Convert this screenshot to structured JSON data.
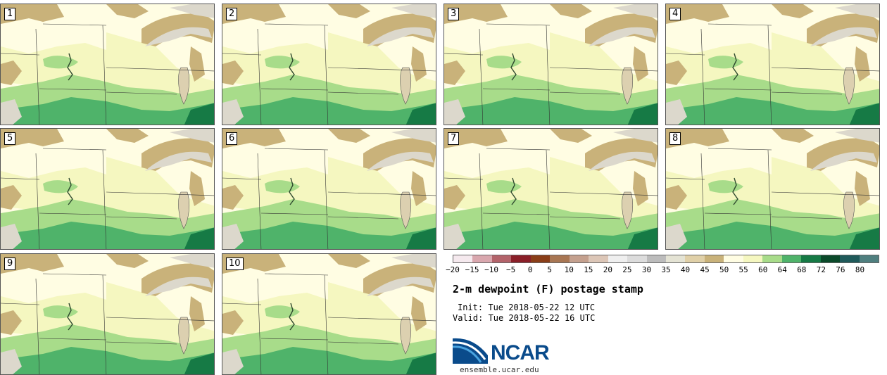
{
  "title": "2-m dewpoint (F) postage stamp",
  "init": "Init: Tue 2018-05-22 12 UTC",
  "valid": "Valid: Tue 2018-05-22 16 UTC",
  "logo_text": "NCAR",
  "site": "ensemble.ucar.edu",
  "panels": [
    {
      "label": "1"
    },
    {
      "label": "2"
    },
    {
      "label": "3"
    },
    {
      "label": "4"
    },
    {
      "label": "5"
    },
    {
      "label": "6"
    },
    {
      "label": "7"
    },
    {
      "label": "8"
    },
    {
      "label": "9"
    },
    {
      "label": "10"
    }
  ],
  "colorbar": {
    "ticks": [
      "−20",
      "−15",
      "−10",
      "−5",
      "0",
      "5",
      "10",
      "15",
      "20",
      "25",
      "30",
      "35",
      "40",
      "45",
      "50",
      "55",
      "60",
      "64",
      "68",
      "72",
      "76",
      "80"
    ],
    "colors": [
      "#f5e9ee",
      "#d9a7ae",
      "#b3636a",
      "#8a1f28",
      "#8a3e18",
      "#a87653",
      "#c4a08e",
      "#dcc6b7",
      "#efefef",
      "#dcdcdc",
      "#bcbcbc",
      "#e4e3d4",
      "#e0d0a8",
      "#c9b27a",
      "#fffde3",
      "#f5f7c0",
      "#a8dc8a",
      "#4fb36a",
      "#167a45",
      "#0b4a2a",
      "#1f5a5a",
      "#4f7f7f"
    ]
  },
  "colors": {
    "land_pale": "#fffde3",
    "land_yellow": "#f5f7c0",
    "green_light": "#a8dc8a",
    "green_mid": "#4fb36a",
    "green_dark": "#167a45",
    "tan": "#c9b27a",
    "gray_light": "#dcd8cc",
    "lake": "#dcd0b0"
  }
}
